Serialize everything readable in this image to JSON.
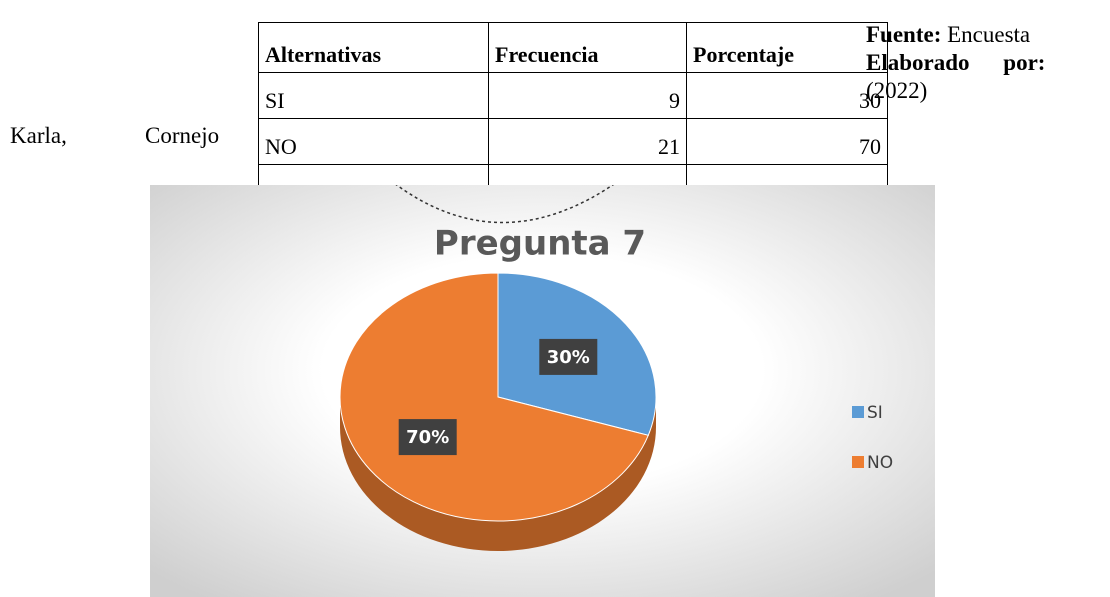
{
  "author": {
    "first": "Karla,",
    "last": "Cornejo"
  },
  "table": {
    "header": [
      "Alternativas",
      "Frecuencia",
      "Porcentaje"
    ],
    "rows": [
      [
        "SI",
        "9",
        "30"
      ],
      [
        "NO",
        "21",
        "70"
      ]
    ]
  },
  "source": {
    "label": "Fuente:",
    "text": "Encuesta",
    "made_label": "Elaborado por:",
    "year": "(2022)"
  },
  "chart_data": {
    "type": "pie",
    "title": "Pregunta 7",
    "categories": [
      "SI",
      "NO"
    ],
    "values": [
      30,
      70
    ],
    "value_labels": [
      "30%",
      "70%"
    ],
    "colors": [
      "#5b9bd5",
      "#ed7d31"
    ],
    "legend": "right"
  }
}
